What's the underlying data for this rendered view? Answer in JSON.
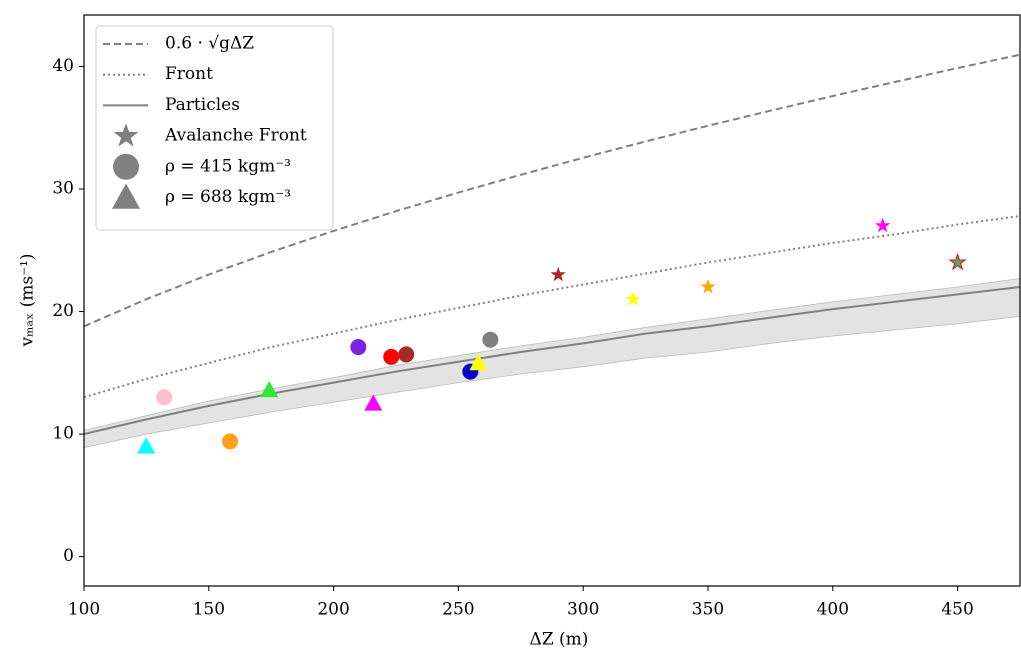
{
  "chart_data": {
    "type": "scatter",
    "x_label": "ΔZ (m)",
    "y_label": "vₘₐₓ (ms⁻¹)",
    "xlim": [
      100,
      475
    ],
    "ylim": [
      -2.4,
      44.2
    ],
    "xticks": [
      100,
      150,
      200,
      250,
      300,
      350,
      400,
      450
    ],
    "yticks": [
      0,
      10,
      20,
      30,
      40
    ],
    "legend": "upper left",
    "curve_x": [
      100,
      125,
      150,
      175,
      200,
      225,
      250,
      275,
      300,
      325,
      350,
      375,
      400,
      425,
      450,
      475
    ],
    "lines": [
      {
        "name": "0.6 · √gΔZ",
        "dash": "dashed",
        "color": "#808080",
        "values": [
          18.79,
          21.01,
          23.02,
          24.86,
          26.58,
          28.19,
          29.71,
          31.16,
          32.55,
          33.88,
          35.16,
          36.39,
          37.59,
          38.74,
          39.87,
          40.96
        ]
      },
      {
        "name": "Front",
        "dash": "dotted",
        "color": "#808080",
        "values": [
          13.0,
          14.5,
          15.8,
          17.1,
          18.2,
          19.3,
          20.3,
          21.3,
          22.2,
          23.1,
          24.0,
          24.8,
          25.6,
          26.3,
          27.1,
          27.8
        ]
      },
      {
        "name": "Particles",
        "dash": "solid",
        "color": "#808080",
        "values": [
          10.0,
          11.2,
          12.3,
          13.3,
          14.2,
          15.1,
          15.9,
          16.7,
          17.4,
          18.2,
          18.8,
          19.5,
          20.2,
          20.8,
          21.4,
          22.0
        ]
      }
    ],
    "band": {
      "color": "#e3e3e3",
      "lower": [
        8.9,
        10.0,
        10.9,
        11.8,
        12.6,
        13.4,
        14.2,
        14.9,
        15.5,
        16.2,
        16.7,
        17.4,
        18.0,
        18.5,
        19.0,
        19.6
      ],
      "upper": [
        10.3,
        11.5,
        12.7,
        13.7,
        14.6,
        15.6,
        16.4,
        17.2,
        17.9,
        18.7,
        19.4,
        20.1,
        20.8,
        21.4,
        22.0,
        22.7
      ]
    },
    "series": [
      {
        "name": "Avalanche Front",
        "marker": "star",
        "legend_color": "#808080",
        "x": [
          290,
          320,
          350,
          420,
          450
        ],
        "values": [
          23,
          21,
          22,
          27,
          24
        ],
        "colors": [
          "#a52a2a",
          "#ffff00",
          "#ffa500",
          "#ff00ff",
          "#3cb371"
        ]
      },
      {
        "name": "ρ = 415 kgm⁻³",
        "marker": "circle",
        "legend_color": "#808080",
        "x": [
          132.1,
          158.5,
          209.9,
          223.1,
          229.1,
          254.8,
          262.8
        ],
        "values": [
          13.0,
          9.4,
          17.1,
          16.3,
          16.5,
          15.1,
          17.7
        ],
        "colors": [
          "#ffc0cb",
          "#ff9f1c",
          "#7a22e6",
          "#ff0000",
          "#a52a2a",
          "#0000cd",
          "#808080"
        ]
      },
      {
        "name": "ρ = 688 kgm⁻³",
        "marker": "triangle",
        "legend_color": "#808080",
        "x": [
          124.9,
          174.2,
          215.9,
          258.0
        ],
        "values": [
          9.0,
          13.6,
          12.5,
          15.8
        ],
        "colors": [
          "#00ffff",
          "#32e632",
          "#ff00ff",
          "#ffff00"
        ]
      }
    ]
  }
}
